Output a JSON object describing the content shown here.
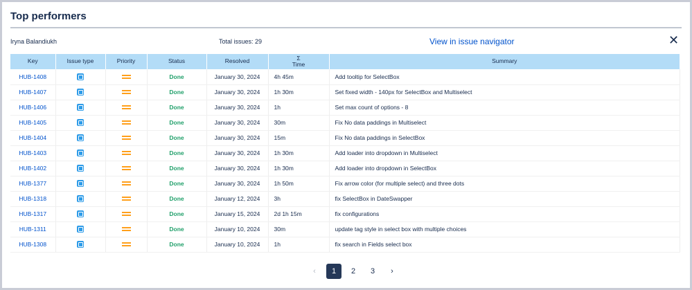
{
  "title": "Top performers",
  "user": "Iryna Balandiukh",
  "total": "Total issues: 29",
  "nav_link": "View in issue navigator",
  "close": "✕",
  "columns": [
    "Key",
    "Issue type",
    "Priority",
    "Status",
    "Resolved",
    "Σ",
    "Time",
    "Summary"
  ],
  "rows": [
    [
      "HUB-1408",
      "Done",
      "January 30, 2024",
      "4h 45m",
      "Add tooltip for SelectBox"
    ],
    [
      "HUB-1407",
      "Done",
      "January 30, 2024",
      "1h 30m",
      "Set fixed width - 140px for SelectBox and Multiselect"
    ],
    [
      "HUB-1406",
      "Done",
      "January 30, 2024",
      "1h",
      "Set max count of options - 8"
    ],
    [
      "HUB-1405",
      "Done",
      "January 30, 2024",
      "30m",
      "Fix No data paddings in Multiselect"
    ],
    [
      "HUB-1404",
      "Done",
      "January 30, 2024",
      "15m",
      "Fix No data paddings in SelectBox"
    ],
    [
      "HUB-1403",
      "Done",
      "January 30, 2024",
      "1h 30m",
      "Add loader into dropdown in Multiselect"
    ],
    [
      "HUB-1402",
      "Done",
      "January 30, 2024",
      "1h 30m",
      "Add loader into dropdown in SelectBox"
    ],
    [
      "HUB-1377",
      "Done",
      "January 30, 2024",
      "1h 50m",
      "Fix arrow color (for multiple select) and three dots"
    ],
    [
      "HUB-1318",
      "Done",
      "January 12, 2024",
      "3h",
      "fix SelectBox in DateSwapper"
    ],
    [
      "HUB-1317",
      "Done",
      "January 15, 2024",
      "2d 1h 15m",
      "fix configurations"
    ],
    [
      "HUB-1311",
      "Done",
      "January 10, 2024",
      "30m",
      "update tag style in select box with multiple choices"
    ],
    [
      "HUB-1308",
      "Done",
      "January 10, 2024",
      "1h",
      "fix search in Fields select box"
    ]
  ],
  "icons": {
    "issue_type": "task-icon",
    "priority": "medium-priority-icon"
  },
  "pager": {
    "prev": "‹",
    "pages": [
      "1",
      "2",
      "3"
    ],
    "next": "›",
    "current": "1"
  },
  "colors": {
    "header": "#b3dcf7",
    "link": "#0052cc",
    "done": "#22a06b",
    "priority": "#ff9f1a"
  }
}
